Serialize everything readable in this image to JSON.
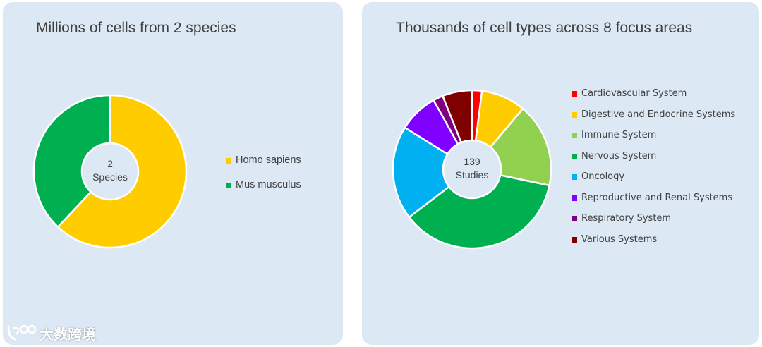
{
  "chart_data": [
    {
      "type": "pie",
      "title": "Millions of cells from 2 species",
      "center_label": [
        "2",
        "Species"
      ],
      "categories": [
        "Homo sapiens",
        "Mus musculus"
      ],
      "values": [
        62,
        38
      ],
      "colors": [
        "#ffcc00",
        "#00b050"
      ],
      "legend_position": "right"
    },
    {
      "type": "pie",
      "title": "Thousands of cell types across 8 focus areas",
      "center_label": [
        "139",
        "Studies"
      ],
      "categories": [
        "Cardiovascular System",
        "Digestive and Endocrine Systems",
        "Immune System",
        "Nervous System",
        "Oncology",
        "Reproductive and Renal Systems",
        "Respiratory System",
        "Various Systems"
      ],
      "values": [
        2,
        9,
        17,
        36,
        19,
        8,
        2,
        6
      ],
      "colors": [
        "#ff0000",
        "#ffcc00",
        "#92d050",
        "#00b050",
        "#00b0f0",
        "#7f00ff",
        "#7f007f",
        "#800000"
      ],
      "legend_position": "right"
    }
  ],
  "watermark": {
    "text": "大数跨境",
    "icon": "brand-logo-icon"
  }
}
